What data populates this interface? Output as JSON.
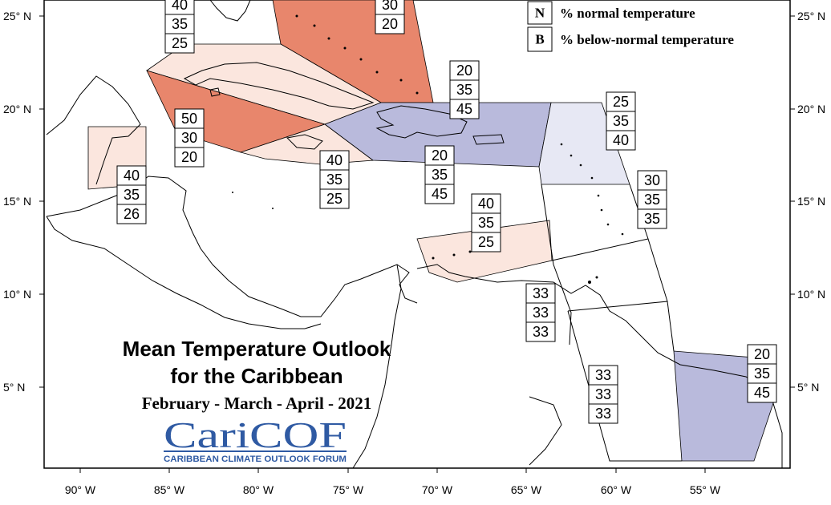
{
  "title_line1": "Mean Temperature Outlook",
  "title_line2": "for the Caribbean",
  "period": "February - March - April - 2021",
  "logo": {
    "name": "CariCOF",
    "tagline": "CARIBBEAN CLIMATE OUTLOOK FORUM"
  },
  "legend": [
    {
      "key": "N",
      "label": "% normal temperature"
    },
    {
      "key": "B",
      "label": "% below-normal temperature"
    }
  ],
  "x_ticks": [
    "90° W",
    "85° W",
    "80° W",
    "75° W",
    "70° W",
    "65° W",
    "60° W",
    "55° W"
  ],
  "y_ticks": [
    "25° N",
    "20° N",
    "15° N",
    "10° N",
    "5° N"
  ],
  "colors": {
    "above_strong": "#e8866c",
    "above_light": "#fbe6de",
    "below_strong": "#b9badc",
    "below_light": "#e7e8f4"
  },
  "regions": [
    {
      "id": "bahamas",
      "values": [
        "30",
        "20"
      ],
      "category": "above_strong"
    },
    {
      "id": "cuba-east",
      "values": [
        "40",
        "35",
        "25"
      ],
      "category": "above_light"
    },
    {
      "id": "cuba-west",
      "values": [
        "50",
        "30",
        "20"
      ],
      "category": "above_strong"
    },
    {
      "id": "belize",
      "values": [
        "40",
        "35",
        "26"
      ],
      "category": "above_light"
    },
    {
      "id": "jamaica",
      "values": [
        "40",
        "35",
        "25"
      ],
      "category": "above_light"
    },
    {
      "id": "hispaniola-north",
      "values": [
        "20",
        "35",
        "45"
      ],
      "category": "below_strong"
    },
    {
      "id": "hispaniola-south",
      "values": [
        "20",
        "35",
        "45"
      ],
      "category": "below_strong"
    },
    {
      "id": "leeward",
      "values": [
        "25",
        "35",
        "40"
      ],
      "category": "below_light"
    },
    {
      "id": "windward",
      "values": [
        "30",
        "35",
        "35"
      ],
      "category": "none"
    },
    {
      "id": "abc-islands",
      "values": [
        "40",
        "35",
        "25"
      ],
      "category": "above_light"
    },
    {
      "id": "trinidad",
      "values": [
        "33",
        "33",
        "33"
      ],
      "category": "none"
    },
    {
      "id": "guyana",
      "values": [
        "33",
        "33",
        "33"
      ],
      "category": "none"
    },
    {
      "id": "french-guiana",
      "values": [
        "20",
        "35",
        "45"
      ],
      "category": "below_strong"
    }
  ]
}
